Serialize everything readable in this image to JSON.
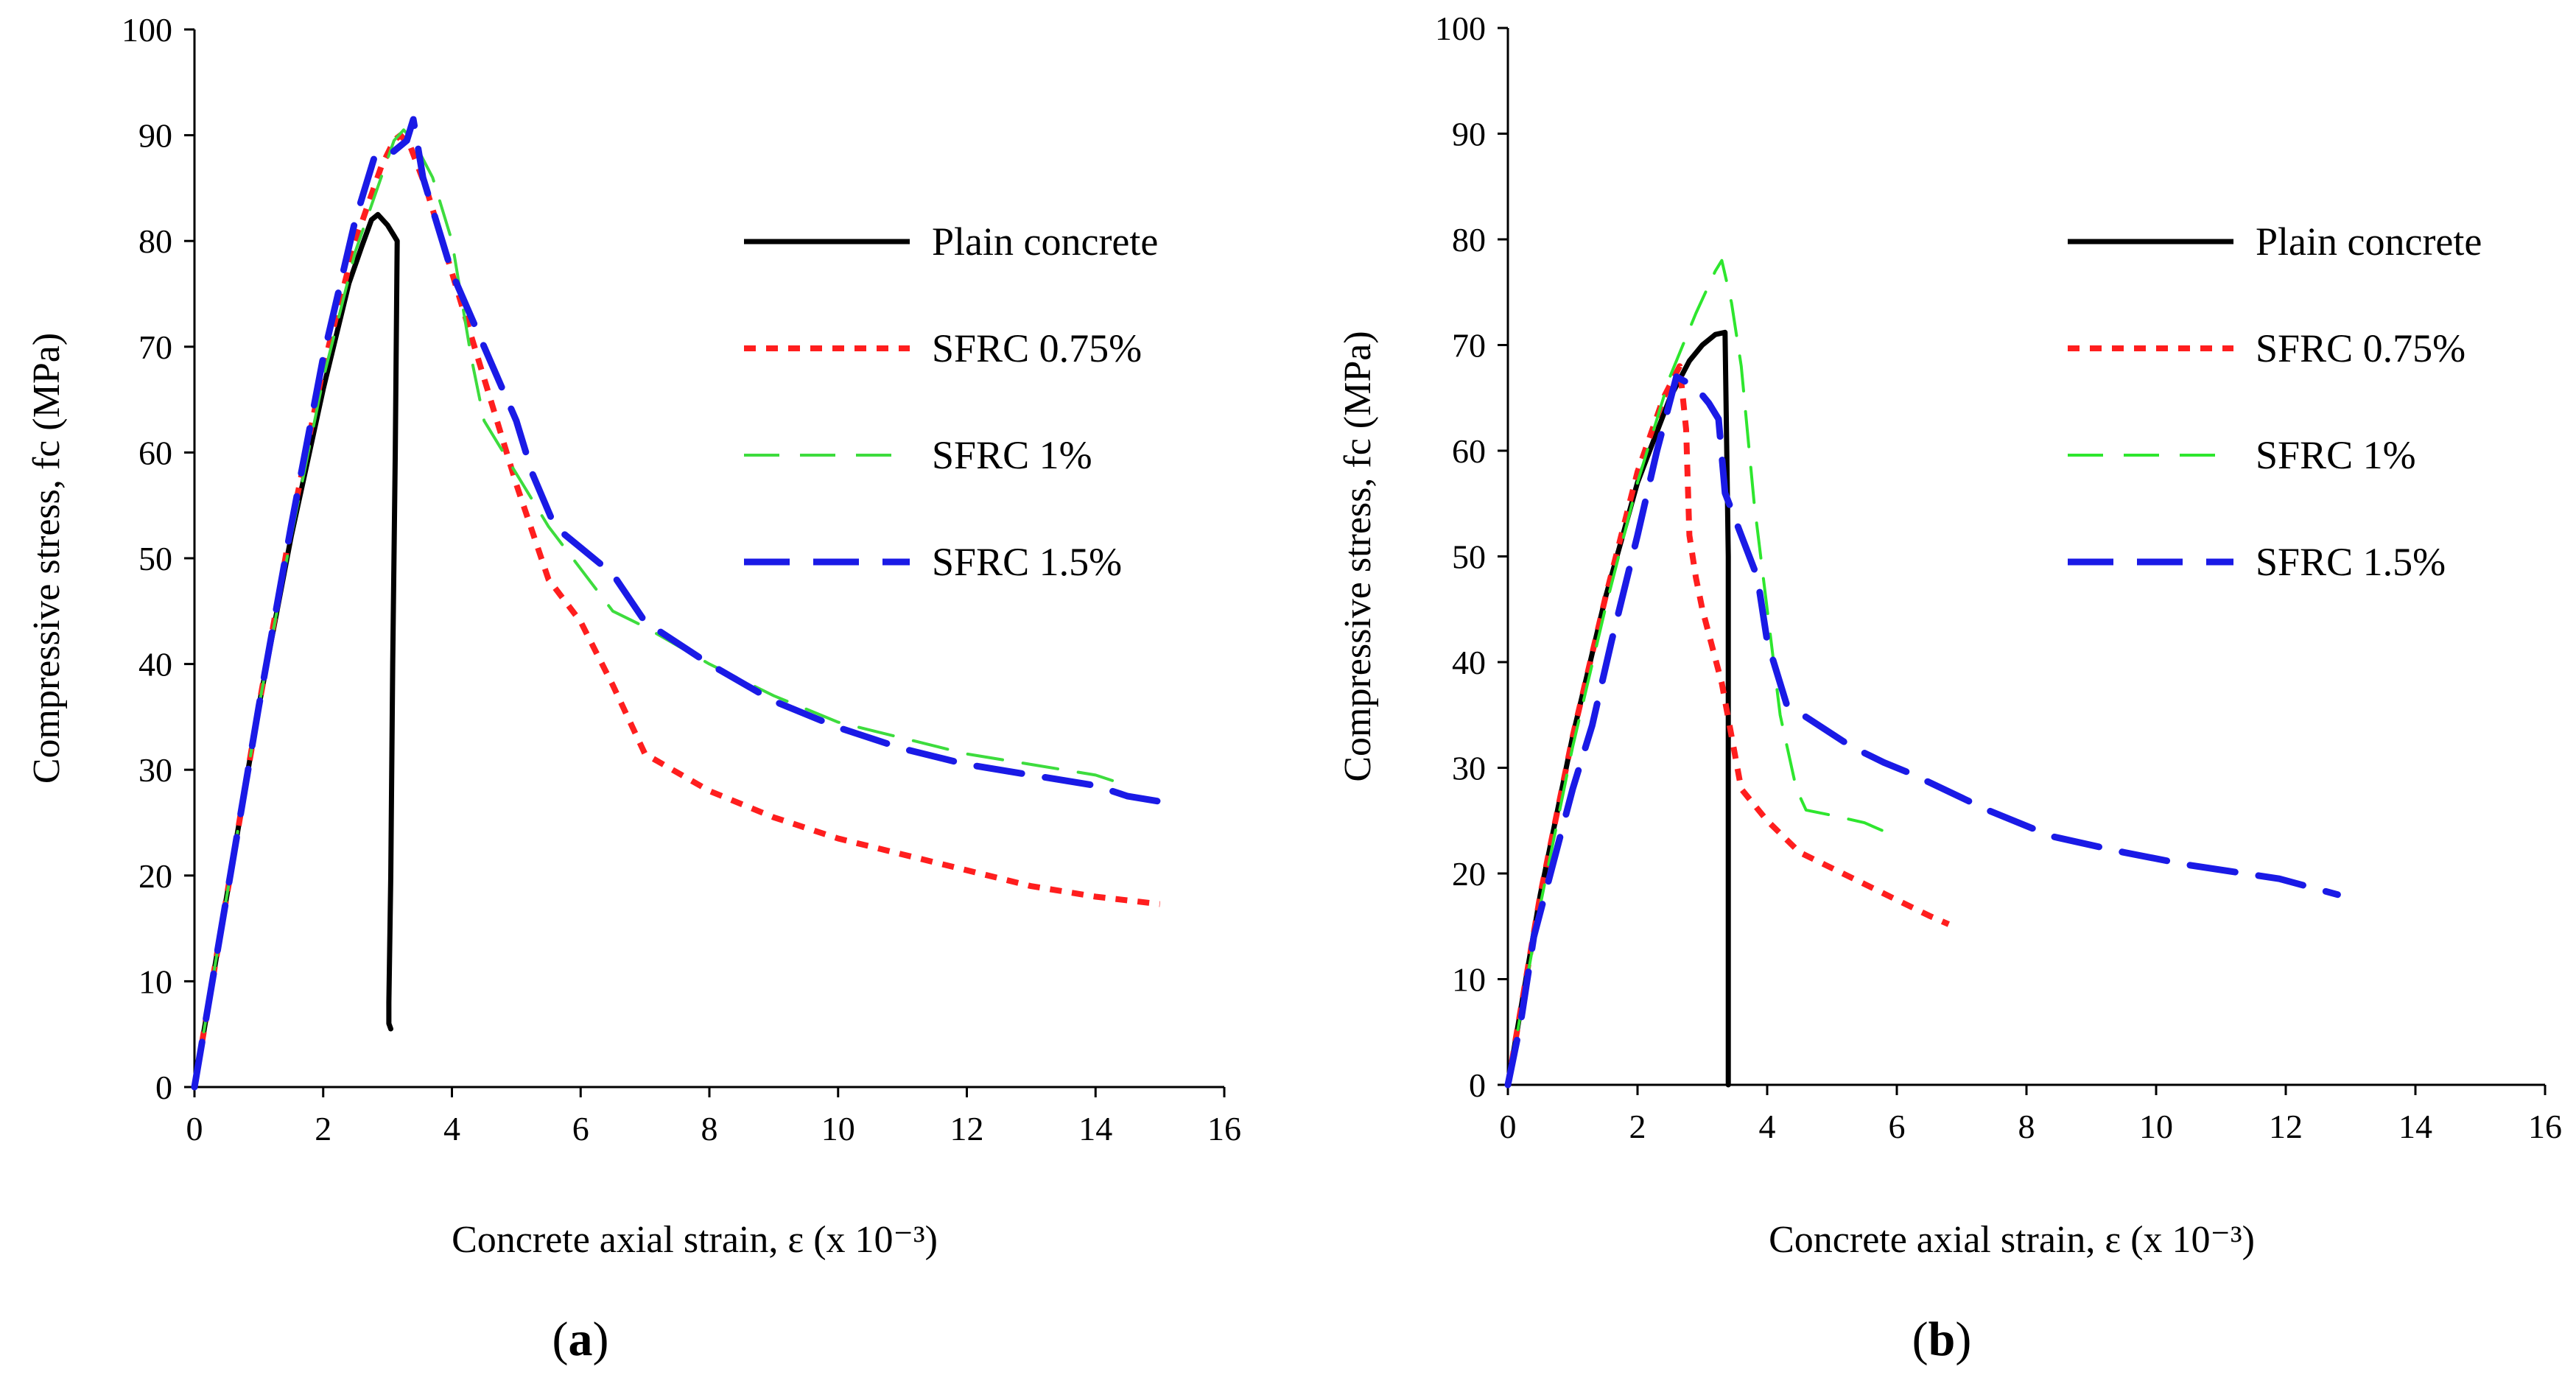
{
  "chart_data": [
    {
      "type": "line",
      "panel_label": "(a)",
      "xlabel": "Concrete axial strain, ε (x 10⁻³)",
      "ylabel": "Compressive stress, fc (MPa)",
      "xlim": [
        0,
        16
      ],
      "ylim": [
        0,
        100
      ],
      "x_ticks": [
        0,
        2,
        4,
        6,
        8,
        10,
        12,
        14,
        16
      ],
      "y_ticks": [
        0,
        10,
        20,
        30,
        40,
        50,
        60,
        70,
        80,
        90,
        100
      ],
      "grid": false,
      "legend_position": "right",
      "series": [
        {
          "name": "Plain concrete",
          "color": "#000000",
          "x": [
            0.0,
            0.5,
            1.0,
            1.5,
            2.0,
            2.4,
            2.6,
            2.75,
            2.85,
            3.0,
            3.1,
            3.15,
            3.12,
            3.08,
            3.05,
            3.02,
            3.02,
            3.05
          ],
          "y": [
            0.0,
            18.0,
            36.0,
            52.0,
            66.0,
            76.0,
            79.5,
            82.0,
            82.5,
            81.5,
            80.5,
            80.0,
            60.0,
            40.0,
            20.0,
            8.0,
            6.0,
            5.5
          ]
        },
        {
          "name": "SFRC 0.75%",
          "color": "#ff1e1e",
          "x": [
            0.0,
            0.5,
            1.0,
            1.5,
            2.0,
            2.5,
            2.9,
            3.1,
            3.2,
            3.35,
            3.6,
            4.0,
            4.5,
            5.0,
            5.5,
            6.0,
            6.5,
            7.0,
            8.0,
            9.0,
            10.0,
            11.0,
            12.0,
            13.0,
            14.0,
            15.0
          ],
          "y": [
            0.0,
            18.0,
            36.0,
            53.0,
            68.0,
            80.0,
            87.0,
            89.5,
            90.0,
            89.0,
            85.0,
            77.0,
            67.0,
            57.0,
            48.0,
            44.0,
            38.0,
            31.5,
            28.0,
            25.5,
            23.5,
            22.0,
            20.5,
            19.0,
            18.0,
            17.3
          ]
        },
        {
          "name": "SFRC 1%",
          "color": "#3ddc3d",
          "x": [
            0.0,
            0.5,
            1.0,
            1.5,
            2.0,
            2.5,
            2.9,
            3.1,
            3.25,
            3.4,
            3.7,
            4.0,
            4.3,
            4.5,
            5.0,
            5.5,
            6.0,
            6.5,
            7.0,
            8.0,
            9.0,
            10.0,
            11.0,
            12.0,
            13.0,
            14.0,
            14.5
          ],
          "y": [
            0.0,
            18.0,
            36.0,
            52.0,
            67.0,
            79.0,
            86.0,
            89.5,
            90.5,
            89.5,
            86.0,
            80.0,
            69.0,
            63.0,
            58.0,
            53.0,
            49.0,
            45.0,
            43.5,
            40.0,
            37.0,
            34.5,
            33.0,
            31.5,
            30.5,
            29.5,
            28.5
          ]
        },
        {
          "name": "SFRC 1.5%",
          "color": "#1a1ae6",
          "x": [
            0.0,
            0.5,
            1.0,
            1.5,
            2.0,
            2.5,
            2.8,
            3.0,
            3.3,
            3.4,
            3.55,
            3.8,
            4.0,
            4.5,
            5.0,
            5.25,
            5.6,
            6.0,
            6.5,
            7.0,
            8.0,
            9.0,
            10.0,
            11.0,
            12.0,
            13.0,
            14.0,
            14.5,
            15.0
          ],
          "y": [
            0.0,
            18.0,
            36.0,
            53.0,
            69.0,
            82.0,
            88.0,
            88.0,
            89.5,
            91.5,
            86.0,
            81.0,
            77.0,
            70.0,
            63.0,
            58.0,
            53.0,
            51.0,
            48.5,
            44.0,
            40.0,
            36.5,
            34.0,
            32.0,
            30.5,
            29.5,
            28.5,
            27.5,
            27.0
          ]
        }
      ]
    },
    {
      "type": "line",
      "panel_label": "(b)",
      "xlabel": "Concrete axial strain, ε (x 10⁻³)",
      "ylabel": "Compressive stress, fc (MPa)",
      "xlim": [
        0,
        16
      ],
      "ylim": [
        0,
        100
      ],
      "x_ticks": [
        0,
        2,
        4,
        6,
        8,
        10,
        12,
        14,
        16
      ],
      "y_ticks": [
        0,
        10,
        20,
        30,
        40,
        50,
        60,
        70,
        80,
        90,
        100
      ],
      "grid": false,
      "legend_position": "right",
      "series": [
        {
          "name": "Plain concrete",
          "color": "#000000",
          "x": [
            0.0,
            0.5,
            1.0,
            1.5,
            2.0,
            2.5,
            2.8,
            3.0,
            3.2,
            3.35,
            3.4,
            3.4,
            3.4
          ],
          "y": [
            0.0,
            18.0,
            33.0,
            46.0,
            57.0,
            65.0,
            68.5,
            70.0,
            71.0,
            71.2,
            50.0,
            20.0,
            0.0
          ]
        },
        {
          "name": "SFRC 0.75%",
          "color": "#ff1e1e",
          "x": [
            0.0,
            0.5,
            1.0,
            1.5,
            2.0,
            2.4,
            2.65,
            2.75,
            2.8,
            2.9,
            3.0,
            3.3,
            3.6,
            4.0,
            4.5,
            5.0,
            5.5,
            6.0,
            6.5,
            6.8
          ],
          "y": [
            0.0,
            18.0,
            33.0,
            46.0,
            58.0,
            65.0,
            68.0,
            62.0,
            52.0,
            48.0,
            45.0,
            38.0,
            28.0,
            25.0,
            22.0,
            20.5,
            19.0,
            17.5,
            16.0,
            15.2
          ]
        },
        {
          "name": "SFRC 1%",
          "color": "#2ee62e",
          "x": [
            0.0,
            0.5,
            1.0,
            1.5,
            2.0,
            2.5,
            2.9,
            3.2,
            3.3,
            3.45,
            3.6,
            3.8,
            4.0,
            4.2,
            4.45,
            4.6,
            5.0,
            5.5,
            5.8,
            5.8
          ],
          "y": [
            0.0,
            17.0,
            32.0,
            45.0,
            57.0,
            67.0,
            73.0,
            77.0,
            78.0,
            74.0,
            68.0,
            55.0,
            45.0,
            35.0,
            28.0,
            26.0,
            25.5,
            24.8,
            24.0,
            23.0
          ]
        },
        {
          "name": "SFRC 1.5%",
          "color": "#1a1ae6",
          "x": [
            0.0,
            0.2,
            0.4,
            0.7,
            1.0,
            1.3,
            1.6,
            2.0,
            2.3,
            2.6,
            2.9,
            3.1,
            3.25,
            3.35,
            3.6,
            3.85,
            4.0,
            4.3,
            5.3,
            5.8,
            6.2,
            7.4,
            8.4,
            9.5,
            10.5,
            11.9,
            12.8
          ],
          "y": [
            0.0,
            6.0,
            14.0,
            21.0,
            28.0,
            34.0,
            42.0,
            52.0,
            60.0,
            67.0,
            66.0,
            64.5,
            63.0,
            56.0,
            52.0,
            48.0,
            42.0,
            36.0,
            32.0,
            30.5,
            29.5,
            26.0,
            23.5,
            22.0,
            20.8,
            19.5,
            18.0
          ]
        }
      ]
    }
  ]
}
